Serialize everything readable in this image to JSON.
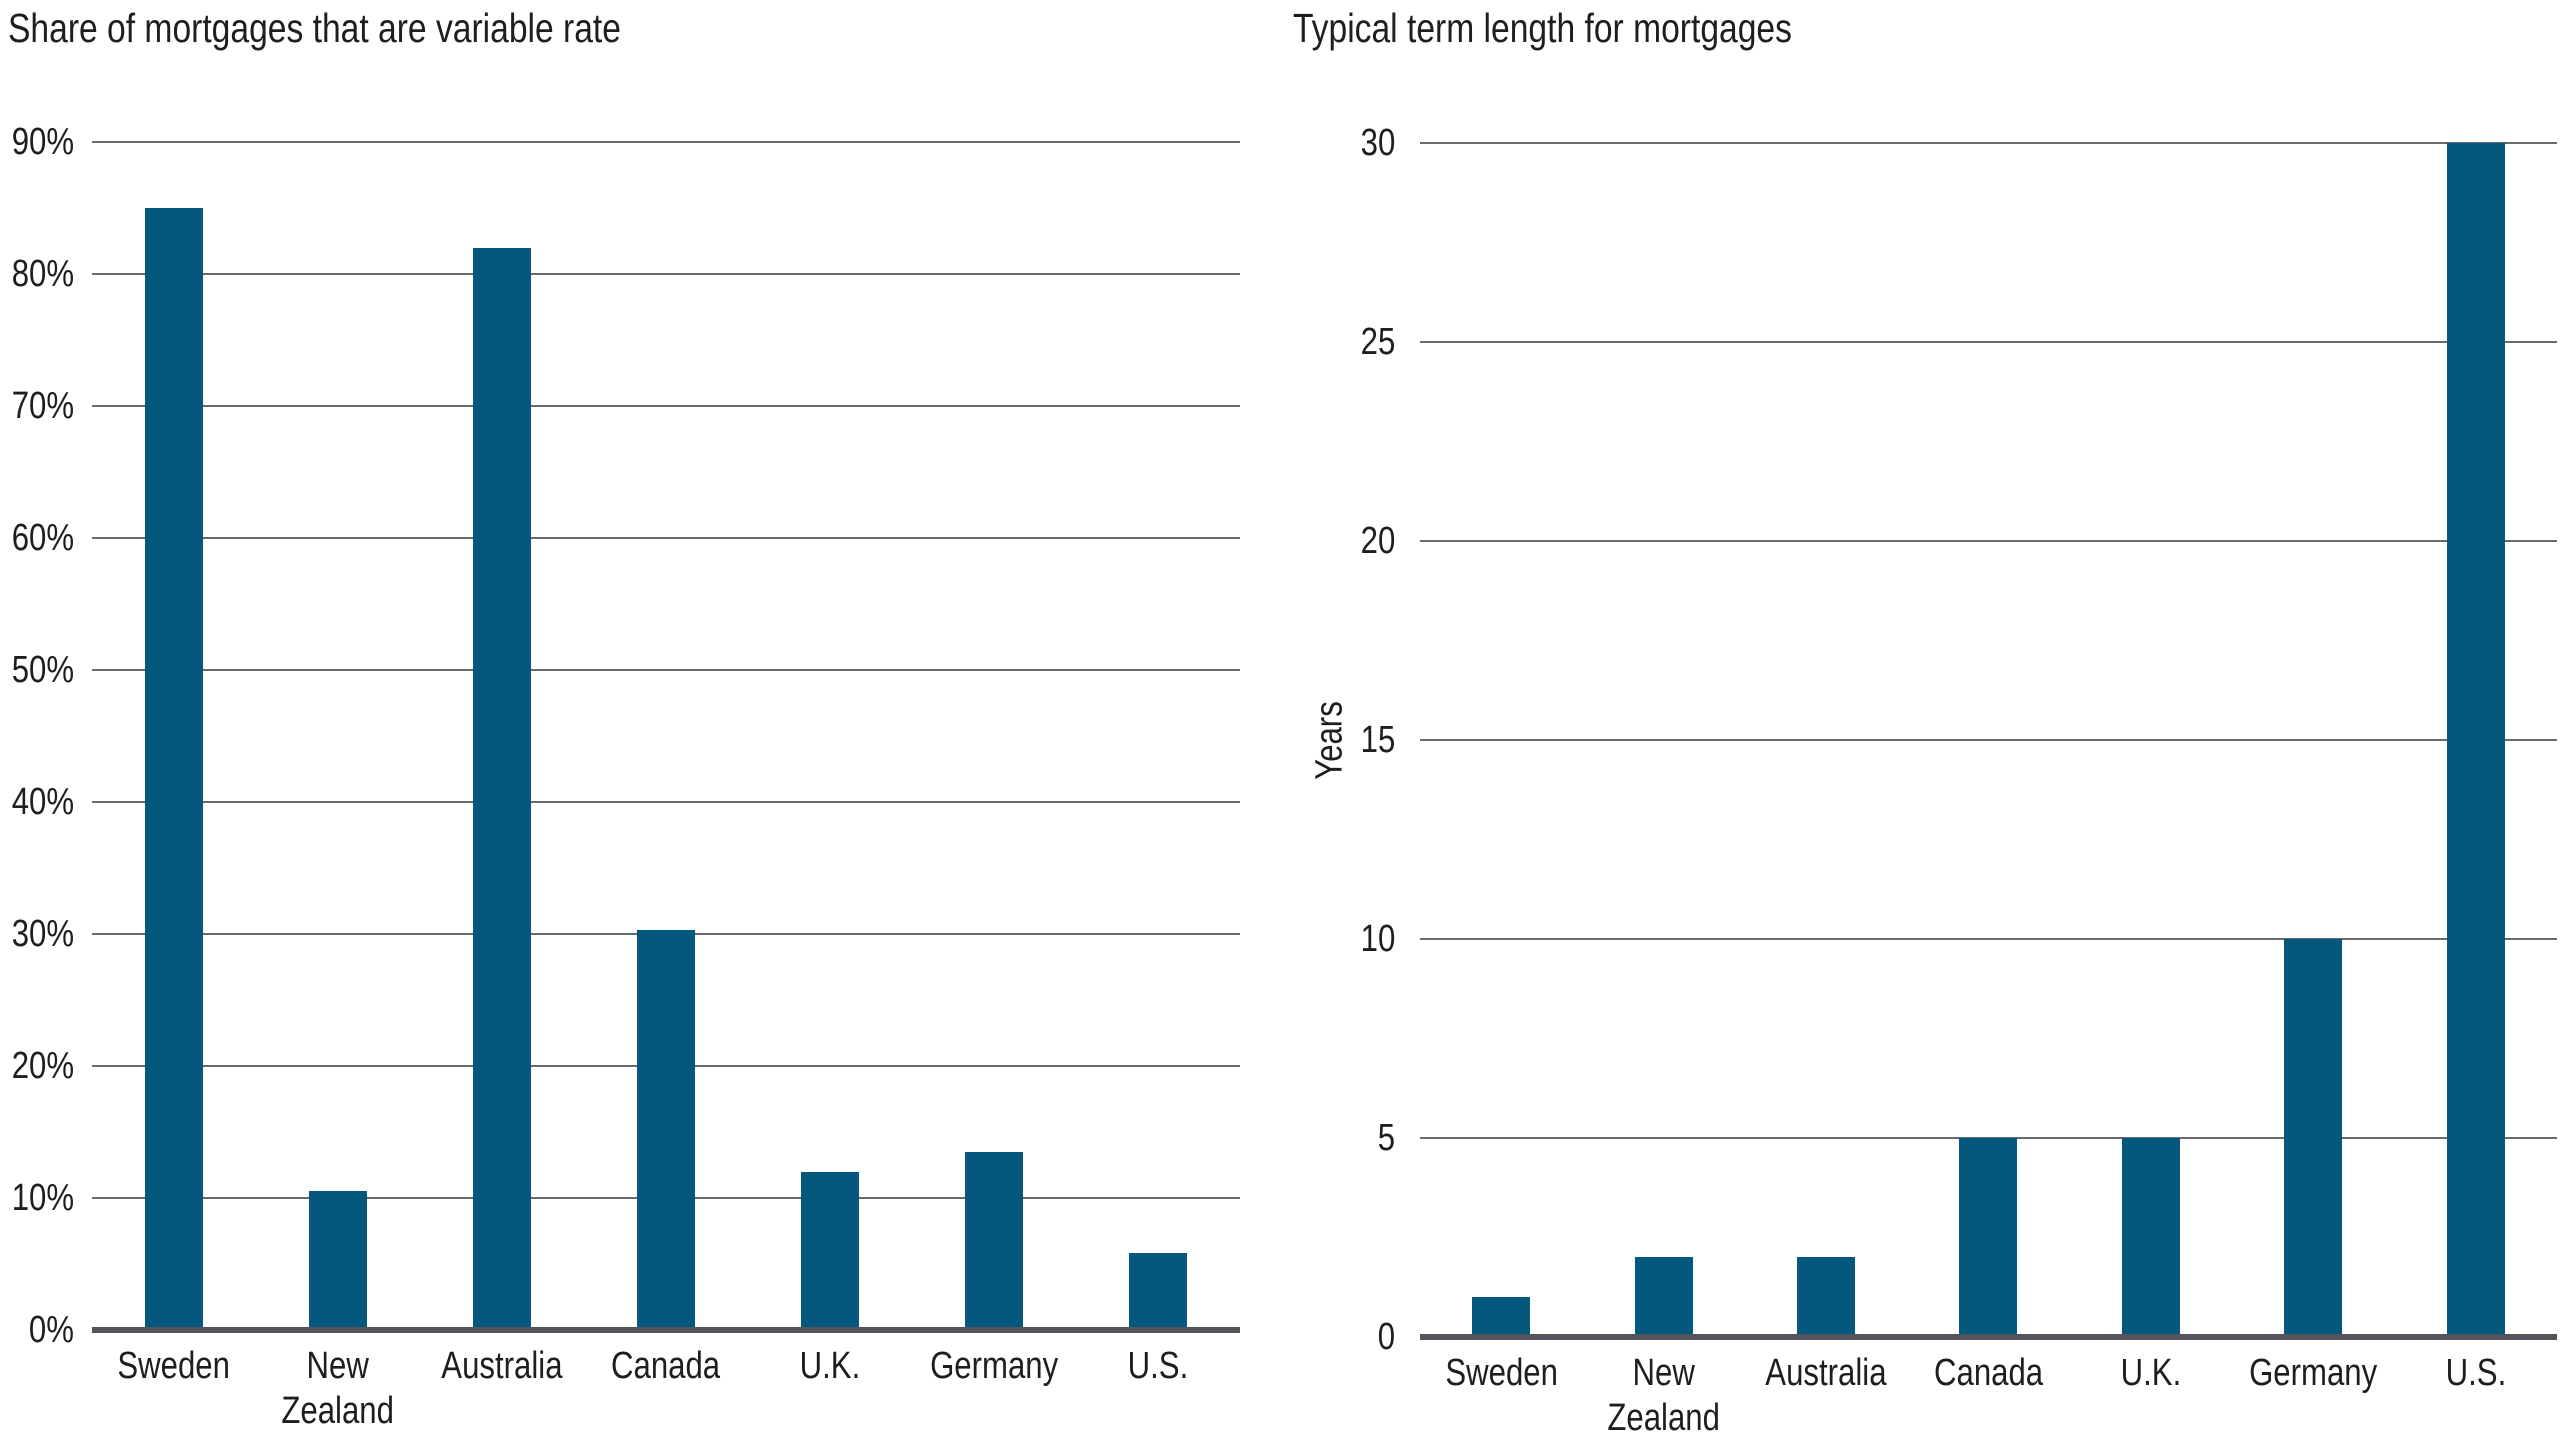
{
  "figure": {
    "background": "#FFFFFF",
    "text_color": "#1E1E1E"
  },
  "colors": {
    "bar": "#04587E",
    "gridline": "#696A6E",
    "axis_line": "#54555A"
  },
  "chart_data": [
    {
      "type": "bar",
      "title": "Share of mortgages that are variable rate",
      "categories": [
        "Sweden",
        "New Zealand",
        "Australia",
        "Canada",
        "U.K.",
        "Germany",
        "U.S."
      ],
      "values": [
        85,
        10.5,
        82,
        30.3,
        12,
        13.5,
        5.8
      ],
      "xlabel": "",
      "ylabel": "",
      "ylim": [
        0,
        90
      ],
      "tick_step": 10,
      "tick_suffix": "%",
      "tick_labels": [
        "0%",
        "10%",
        "20%",
        "30%",
        "40%",
        "50%",
        "60%",
        "70%",
        "80%",
        "90%"
      ],
      "grid": true,
      "legend": "none",
      "bar_color": "#04587E"
    },
    {
      "type": "bar",
      "title": "Typical term length for mortgages",
      "categories": [
        "Sweden",
        "New Zealand",
        "Australia",
        "Canada",
        "U.K.",
        "Germany",
        "U.S."
      ],
      "values": [
        1,
        2,
        2,
        5,
        5,
        10,
        30
      ],
      "xlabel": "",
      "ylabel": "Years",
      "ylim": [
        0,
        30
      ],
      "tick_step": 5,
      "tick_suffix": "",
      "tick_labels": [
        "0",
        "5",
        "10",
        "15",
        "20",
        "25",
        "30"
      ],
      "grid": true,
      "legend": "none",
      "bar_color": "#04587E"
    }
  ]
}
